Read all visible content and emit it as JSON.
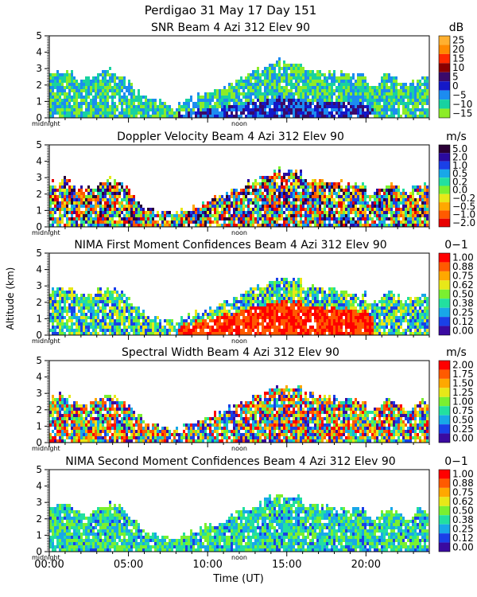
{
  "header": {
    "title_line1": "Perdigao  31 May 17 Day 151"
  },
  "axis": {
    "ylabel": "Altitude (km)",
    "xlabel": "Time (UT)",
    "midnight_label": "midnight",
    "noon_label": "noon",
    "y_ticks": [
      "0",
      "1",
      "2",
      "3",
      "4",
      "5"
    ],
    "x_ticks": [
      "00:00",
      "05:00",
      "10:00",
      "15:00",
      "20:00"
    ],
    "x_tick_hours": [
      0,
      5,
      10,
      15,
      20
    ]
  },
  "chart_data": [
    {
      "type": "heatmap",
      "title": "SNR Beam 4 Azi 312 Elev 90",
      "unit": "dB",
      "ylim": [
        0,
        5
      ],
      "xlim_hours": [
        0,
        24
      ],
      "colorbar": [
        "25",
        "20",
        "15",
        "10",
        "5",
        "0",
        "−5",
        "−10",
        "−15"
      ],
      "colors": [
        "#ffb030",
        "#ff8a00",
        "#ff2a00",
        "#8a0000",
        "#3a0a6a",
        "#1418c8",
        "#1c8cf0",
        "#18d2a0",
        "#8cec28"
      ]
    },
    {
      "type": "heatmap",
      "title": "Doppler Velocity Beam 4 Azi 312 Elev 90",
      "unit": "m/s",
      "ylim": [
        0,
        5
      ],
      "xlim_hours": [
        0,
        24
      ],
      "colorbar": [
        "5.0",
        "2.0",
        "1.0",
        "0.5",
        "0.2",
        "0.0",
        "−0.2",
        "−0.5",
        "−1.0",
        "−2.0"
      ],
      "colors": [
        "#2a0036",
        "#2a0aa0",
        "#1a40e8",
        "#18a8e8",
        "#22e0a0",
        "#7af030",
        "#e8e818",
        "#ffa800",
        "#ff5a00",
        "#e80000"
      ]
    },
    {
      "type": "heatmap",
      "title": "NIMA First Moment Confidences Beam 4 Azi 312 Elev 90",
      "unit": "0−1",
      "ylim": [
        0,
        5
      ],
      "xlim_hours": [
        0,
        24
      ],
      "colorbar": [
        "1.00",
        "0.88",
        "0.75",
        "0.62",
        "0.50",
        "0.38",
        "0.25",
        "0.12",
        "0.00"
      ],
      "colors": [
        "#ff0000",
        "#ff5a00",
        "#ffa800",
        "#e8e818",
        "#7af030",
        "#22e0a0",
        "#18a8e8",
        "#1a40e8",
        "#3a0aa0"
      ]
    },
    {
      "type": "heatmap",
      "title": "Spectral Width Beam 4 Azi 312 Elev 90",
      "unit": "m/s",
      "ylim": [
        0,
        5
      ],
      "xlim_hours": [
        0,
        24
      ],
      "colorbar": [
        "2.00",
        "1.75",
        "1.50",
        "1.25",
        "1.00",
        "0.75",
        "0.50",
        "0.25",
        "0.00"
      ],
      "colors": [
        "#ff0000",
        "#ff5a00",
        "#ffa800",
        "#e8e818",
        "#7af030",
        "#22e0a0",
        "#18a8e8",
        "#1a40e8",
        "#3a0aa0"
      ]
    },
    {
      "type": "heatmap",
      "title": "NIMA Second Moment Confidences Beam 4 Azi 312 Elev 90",
      "unit": "0−1",
      "ylim": [
        0,
        5
      ],
      "xlim_hours": [
        0,
        24
      ],
      "colorbar": [
        "1.00",
        "0.88",
        "0.75",
        "0.62",
        "0.50",
        "0.38",
        "0.25",
        "0.12",
        "0.00"
      ],
      "colors": [
        "#ff0000",
        "#ff5a00",
        "#ffa800",
        "#e8e818",
        "#7af030",
        "#22e0a0",
        "#18a8e8",
        "#1a40e8",
        "#3a0aa0"
      ]
    }
  ]
}
